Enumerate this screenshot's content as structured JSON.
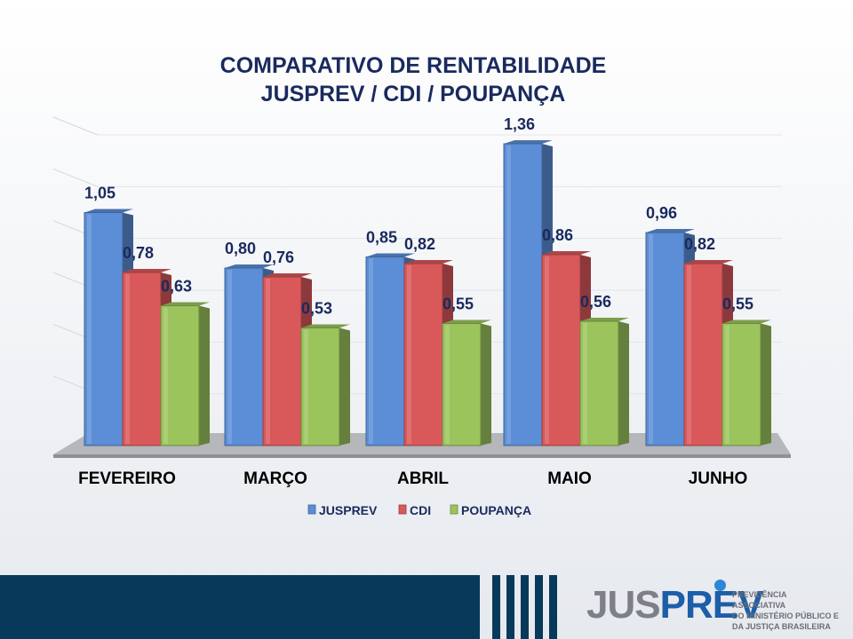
{
  "title": {
    "line1": "COMPARATIVO DE RENTABILIDADE",
    "line2": "JUSPREV / CDI / POUPANÇA"
  },
  "chart_data": {
    "type": "bar",
    "categories": [
      "FEVEREIRO",
      "MARÇO",
      "ABRIL",
      "MAIO",
      "JUNHO"
    ],
    "series": [
      {
        "name": "JUSPREV",
        "values": [
          1.05,
          0.8,
          0.85,
          1.36,
          0.96
        ],
        "labels": [
          "1,05",
          "0,80",
          "0,85",
          "1,36",
          "0,96"
        ],
        "color": "#5b8ed6"
      },
      {
        "name": "CDI",
        "values": [
          0.78,
          0.76,
          0.82,
          0.86,
          0.82
        ],
        "labels": [
          "0,78",
          "0,76",
          "0,82",
          "0,86",
          "0,82"
        ],
        "color": "#d9585a"
      },
      {
        "name": "POUPANÇA",
        "values": [
          0.63,
          0.53,
          0.55,
          0.56,
          0.55
        ],
        "labels": [
          "0,63",
          "0,53",
          "0,55",
          "0,56",
          "0,55"
        ],
        "color": "#9bc45c"
      }
    ],
    "ylim": [
      0,
      1.4
    ],
    "grid": true,
    "legend": "bottom"
  },
  "footer": {
    "logo_part1": "JUS",
    "logo_part2": "PREV",
    "logo_desc_lines": [
      "PREVIDÊNCIA ASSOCIATIVA",
      "DO MINISTÉRIO PÚBLICO E",
      "DA JUSTIÇA BRASILEIRA"
    ],
    "band_color": "#073a5a"
  }
}
